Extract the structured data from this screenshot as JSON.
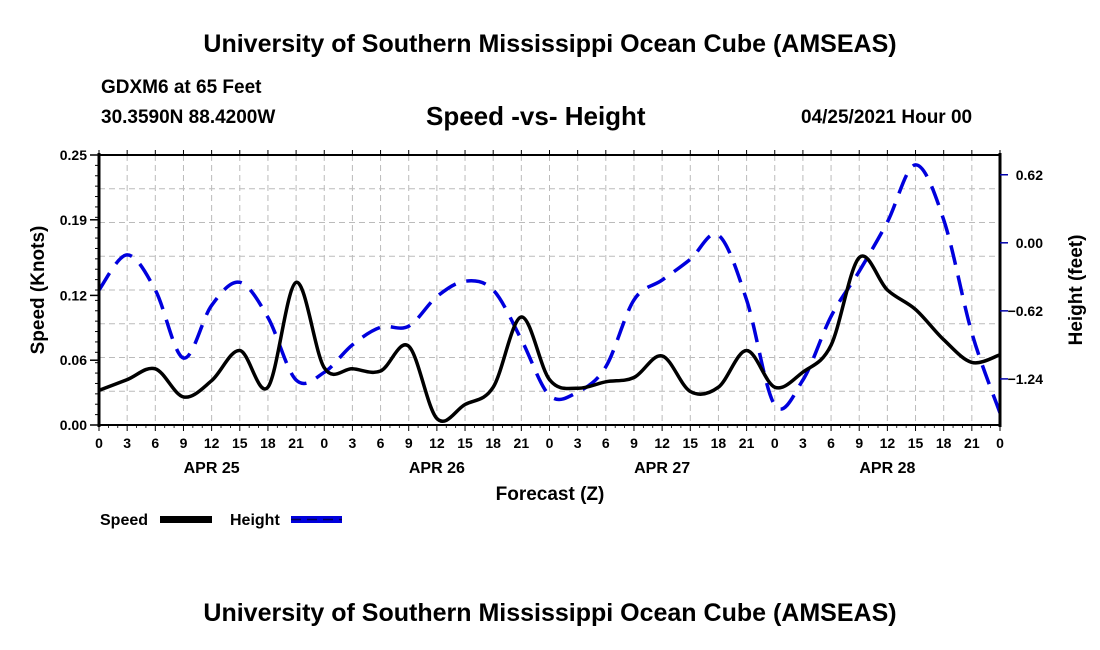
{
  "header": {
    "title": "University of Southern Mississippi Ocean Cube (AMSEAS)",
    "station": "GDXM6 at 65 Feet",
    "coordinates": "30.3590N  88.4200W",
    "chart_title": "Speed -vs- Height",
    "datetime": "04/25/2021 Hour 00"
  },
  "footer": {
    "title": "University of Southern Mississippi Ocean Cube (AMSEAS)"
  },
  "chart_data": {
    "type": "line",
    "title": "Speed -vs- Height",
    "xlabel": "Forecast (Z)",
    "ylabel": "Speed (Knots)",
    "y2label": "Height (feet)",
    "x_unit": "forecast hour",
    "xlim": [
      0,
      96
    ],
    "ylim": [
      0,
      0.25
    ],
    "y2lim": [
      -1.66,
      0.8
    ],
    "grid": true,
    "x_tick_values": [
      0,
      3,
      6,
      9,
      12,
      15,
      18,
      21,
      24,
      27,
      30,
      33,
      36,
      39,
      42,
      45,
      48,
      51,
      54,
      57,
      60,
      63,
      66,
      69,
      72,
      75,
      78,
      81,
      84,
      87,
      90,
      93,
      96
    ],
    "x_tick_labels": [
      "0",
      "3",
      "6",
      "9",
      "12",
      "15",
      "18",
      "21",
      "0",
      "3",
      "6",
      "9",
      "12",
      "15",
      "18",
      "21",
      "0",
      "3",
      "6",
      "9",
      "12",
      "15",
      "18",
      "21",
      "0",
      "3",
      "6",
      "9",
      "12",
      "15",
      "18",
      "21",
      "0"
    ],
    "day_labels": [
      {
        "label": "APR 25",
        "center_hour": 12
      },
      {
        "label": "APR 26",
        "center_hour": 36
      },
      {
        "label": "APR 27",
        "center_hour": 60
      },
      {
        "label": "APR 28",
        "center_hour": 84
      }
    ],
    "y_ticks": [
      0.0,
      0.06,
      0.12,
      0.19,
      0.25
    ],
    "y_tick_labels": [
      "0.00",
      "0.06",
      "0.12",
      "0.19",
      "0.25"
    ],
    "y2_ticks": [
      0.62,
      0.0,
      -0.62,
      -1.24
    ],
    "y2_tick_labels": [
      "0.62",
      "0.00",
      "−0.62",
      "−1.24"
    ],
    "x": [
      0,
      3,
      6,
      9,
      12,
      15,
      18,
      21,
      24,
      27,
      30,
      33,
      36,
      39,
      42,
      45,
      48,
      51,
      54,
      57,
      60,
      63,
      66,
      69,
      72,
      75,
      78,
      81,
      84,
      87,
      90,
      93,
      96
    ],
    "series": [
      {
        "name": "Speed",
        "axis": "left",
        "color": "#000000",
        "style": "solid",
        "values": [
          0.032,
          0.042,
          0.052,
          0.026,
          0.041,
          0.069,
          0.035,
          0.132,
          0.053,
          0.052,
          0.05,
          0.073,
          0.006,
          0.019,
          0.035,
          0.1,
          0.042,
          0.034,
          0.04,
          0.044,
          0.064,
          0.031,
          0.035,
          0.069,
          0.035,
          0.049,
          0.074,
          0.155,
          0.125,
          0.107,
          0.079,
          0.058,
          0.065
        ]
      },
      {
        "name": "Height",
        "axis": "right",
        "color": "#0000dd",
        "style": "dashed",
        "values": [
          -0.43,
          -0.11,
          -0.43,
          -1.05,
          -0.57,
          -0.36,
          -0.68,
          -1.25,
          -1.18,
          -0.93,
          -0.77,
          -0.76,
          -0.49,
          -0.35,
          -0.43,
          -0.88,
          -1.39,
          -1.36,
          -1.13,
          -0.52,
          -0.34,
          -0.15,
          0.07,
          -0.52,
          -1.48,
          -1.25,
          -0.67,
          -0.26,
          0.19,
          0.71,
          0.21,
          -0.82,
          -1.55
        ]
      }
    ],
    "legend": {
      "placement": "bottom-left",
      "entries": [
        {
          "label": "Speed",
          "color": "#000000",
          "style": "solid"
        },
        {
          "label": "Height",
          "color": "#0000dd",
          "style": "dashed"
        }
      ]
    }
  }
}
